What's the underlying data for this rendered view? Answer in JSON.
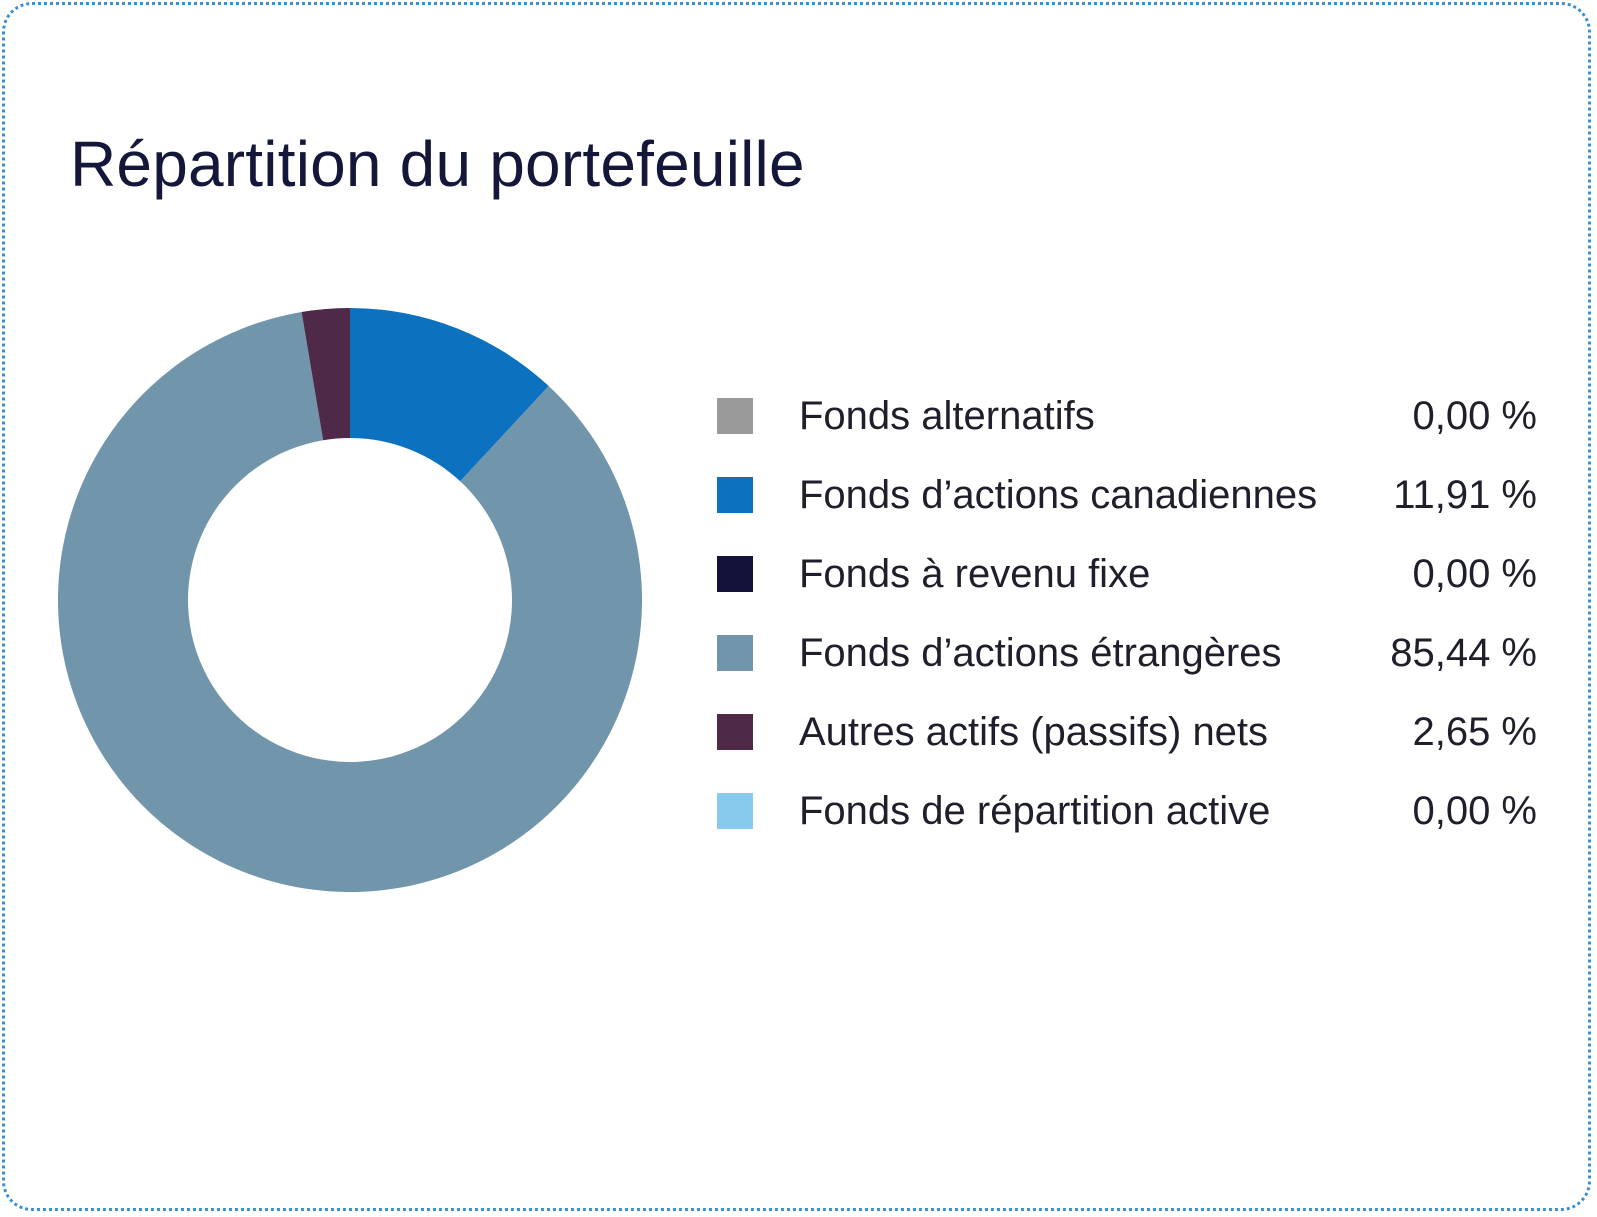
{
  "title": "Répartition du portefeuille",
  "chart_data": {
    "type": "pie",
    "title": "Répartition du portefeuille",
    "donut": true,
    "start": "top",
    "direction": "clockwise",
    "categories": [
      "Fonds alternatifs",
      "Fonds d’actions canadiennes",
      "Fonds à revenu fixe",
      "Fonds d’actions étrangères",
      "Autres actifs (passifs) nets",
      "Fonds de répartition active"
    ],
    "values": [
      0.0,
      11.91,
      0.0,
      85.44,
      2.65,
      0.0
    ],
    "value_labels": [
      "0,00 %",
      "11,91 %",
      "0,00 %",
      "85,44 %",
      "2,65 %",
      "0,00 %"
    ],
    "colors": [
      "#9a9a9a",
      "#0c72c0",
      "#14123a",
      "#7195aa",
      "#4e2a48",
      "#87caee"
    ],
    "legend_position": "right"
  }
}
